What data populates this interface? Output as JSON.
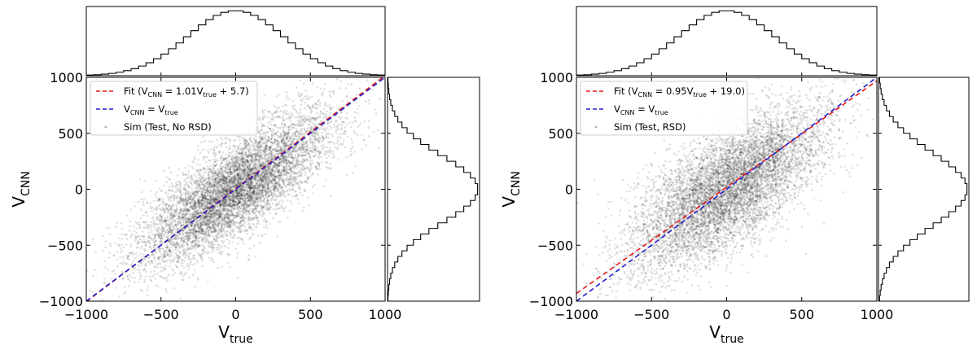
{
  "chart_data": [
    {
      "type": "scatter",
      "panel": "left",
      "xlabel": "V",
      "xlabel_sub": "true",
      "ylabel": "V",
      "ylabel_sub": "CNN",
      "xlim": [
        -1000,
        1000
      ],
      "ylim": [
        -1000,
        1000
      ],
      "xticks": [
        "−1000",
        "−500",
        "0",
        "500",
        "1000"
      ],
      "yticks": [
        "−1000",
        "−500",
        "0",
        "500",
        "1000"
      ],
      "tick_values": [
        -1000,
        -500,
        0,
        500,
        1000
      ],
      "grid": false,
      "legend_position": "top-left",
      "scatter": {
        "n_points": 7000,
        "x_std": 320,
        "y_std": 330,
        "correlation": 0.78,
        "color": "#000000"
      },
      "series": [
        {
          "name": "fit",
          "kind": "line",
          "slope": 1.01,
          "intercept": 5.7,
          "color": "#e41a1c",
          "legend_prefix": "Fit (V",
          "legend_sub1": "CNN",
          "legend_eq": " = 1.01V",
          "legend_sub2": "true",
          "legend_suffix": " + 5.7)"
        },
        {
          "name": "identity",
          "kind": "line",
          "slope": 1.0,
          "intercept": 0.0,
          "color": "#1f1fcc",
          "legend_prefix": "V",
          "legend_sub1": "CNN",
          "legend_eq": " = V",
          "legend_sub2": "true",
          "legend_suffix": ""
        },
        {
          "name": "sim",
          "kind": "points",
          "legend_label": "Sim (Test, No RSD)"
        }
      ],
      "hist_top": {
        "bins": 40,
        "std": 320
      },
      "hist_right": {
        "bins": 40,
        "std": 300
      }
    },
    {
      "type": "scatter",
      "panel": "right",
      "xlabel": "V",
      "xlabel_sub": "true",
      "ylabel": "V",
      "ylabel_sub": "CNN",
      "xlim": [
        -1000,
        1000
      ],
      "ylim": [
        -1000,
        1000
      ],
      "xticks": [
        "−1000",
        "−500",
        "0",
        "500",
        "1000"
      ],
      "yticks": [
        "−1000",
        "−500",
        "0",
        "500",
        "1000"
      ],
      "tick_values": [
        -1000,
        -500,
        0,
        500,
        1000
      ],
      "grid": false,
      "legend_position": "top-left",
      "scatter": {
        "n_points": 7000,
        "x_std": 320,
        "y_std": 360,
        "correlation": 0.68,
        "color": "#000000"
      },
      "series": [
        {
          "name": "fit",
          "kind": "line",
          "slope": 0.95,
          "intercept": 19.0,
          "color": "#e41a1c",
          "legend_prefix": "Fit (V",
          "legend_sub1": "CNN",
          "legend_eq": " = 0.95V",
          "legend_sub2": "true",
          "legend_suffix": " + 19.0)"
        },
        {
          "name": "identity",
          "kind": "line",
          "slope": 1.0,
          "intercept": 0.0,
          "color": "#1f1fcc",
          "legend_prefix": "V",
          "legend_sub1": "CNN",
          "legend_eq": " = V",
          "legend_sub2": "true",
          "legend_suffix": ""
        },
        {
          "name": "sim",
          "kind": "points",
          "legend_label": "Sim (Test, RSD)"
        }
      ],
      "hist_top": {
        "bins": 40,
        "std": 320
      },
      "hist_right": {
        "bins": 40,
        "std": 330
      }
    }
  ]
}
